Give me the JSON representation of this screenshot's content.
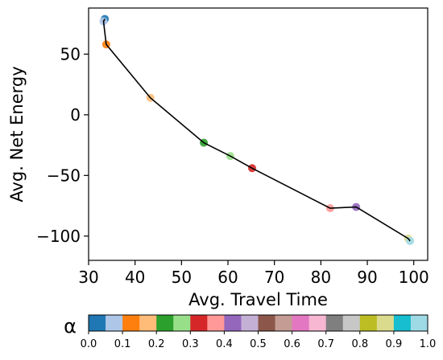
{
  "chart_data": {
    "type": "line",
    "xlabel": "Avg. Travel Time",
    "ylabel": "Avg. Net Energy",
    "xlim": [
      30,
      103
    ],
    "ylim": [
      -120,
      88
    ],
    "xticks": [
      30,
      40,
      50,
      60,
      70,
      80,
      90,
      100
    ],
    "yticks": [
      50,
      0,
      -50,
      -100
    ],
    "grid": false,
    "series": [
      {
        "points": [
          {
            "x": 33.5,
            "y": 79,
            "alpha": 0.0
          },
          {
            "x": 33.2,
            "y": 77,
            "alpha": 0.05
          },
          {
            "x": 33.8,
            "y": 58,
            "alpha": 0.1
          },
          {
            "x": 43.3,
            "y": 14,
            "alpha": 0.15
          },
          {
            "x": 54.8,
            "y": -23,
            "alpha": 0.2
          },
          {
            "x": 60.5,
            "y": -34,
            "alpha": 0.25
          },
          {
            "x": 65.2,
            "y": -44,
            "alpha": 0.3
          },
          {
            "x": 82.0,
            "y": -77,
            "alpha": 0.35
          },
          {
            "x": 87.6,
            "y": -76,
            "alpha": 0.4
          },
          {
            "x": 98.8,
            "y": -102,
            "alpha": 0.85
          },
          {
            "x": 99.2,
            "y": -104,
            "alpha": 0.95
          }
        ]
      }
    ],
    "colorbar": {
      "label": "α",
      "min": 0.0,
      "max": 1.0,
      "tick_labels": [
        "0.0",
        "0.1",
        "0.2",
        "0.3",
        "0.4",
        "0.5",
        "0.6",
        "0.7",
        "0.8",
        "0.9",
        "1.0"
      ],
      "colors": [
        "#1f77b4",
        "#aec7e8",
        "#ff7f0e",
        "#ffbb78",
        "#2ca02c",
        "#98df8a",
        "#d62728",
        "#ff9896",
        "#9467bd",
        "#c5b0d5",
        "#8c564b",
        "#c49c94",
        "#e377c2",
        "#f7b6d2",
        "#7f7f7f",
        "#c7c7c7",
        "#bcbd22",
        "#dbdb8d",
        "#17becf",
        "#9edae5"
      ]
    }
  }
}
